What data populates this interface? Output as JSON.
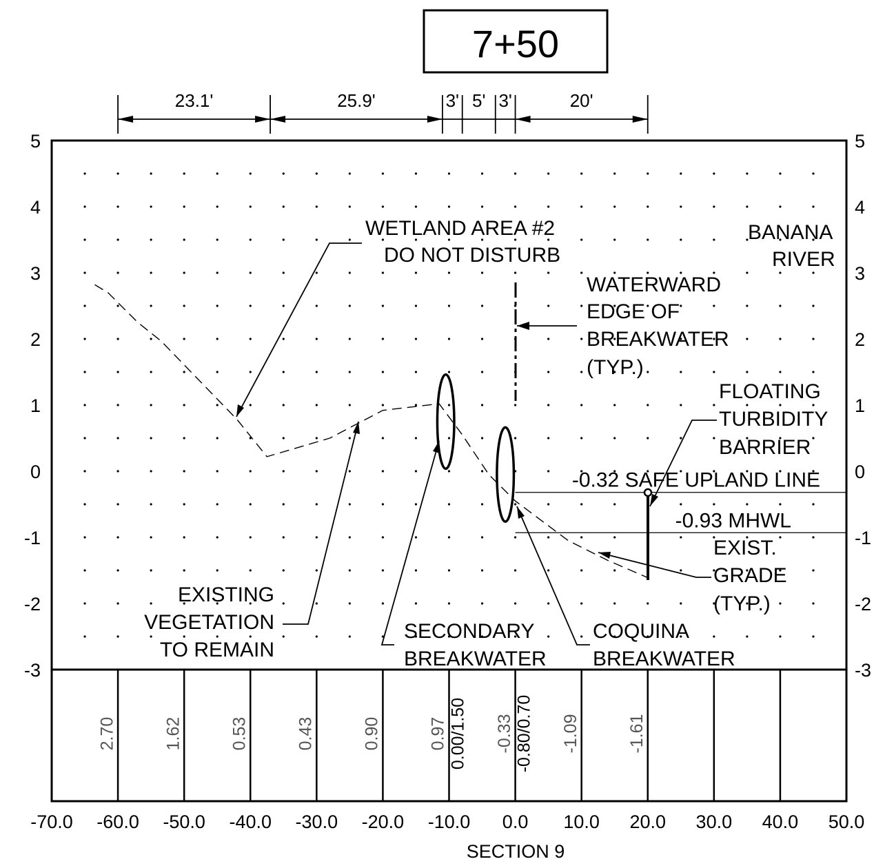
{
  "station": "7+50",
  "section_label": "SECTION 9",
  "y_axis": {
    "min": -3,
    "max": 5,
    "ticks": [
      "5",
      "4",
      "3",
      "2",
      "1",
      "0",
      "-1",
      "-2",
      "-3"
    ]
  },
  "x_axis": {
    "min": -70,
    "max": 50,
    "ticks": [
      "-70.0",
      "-60.0",
      "-50.0",
      "-40.0",
      "-30.0",
      "-20.0",
      "-10.0",
      "0.0",
      "10.0",
      "20.0",
      "30.0",
      "40.0",
      "50.0"
    ]
  },
  "dimensions": [
    {
      "from": -60,
      "to": -37,
      "label": "23.1'"
    },
    {
      "from": -37,
      "to": -11,
      "label": "25.9'"
    },
    {
      "from": -11,
      "to": -8,
      "label": "3'"
    },
    {
      "from": -8,
      "to": -3,
      "label": "5'"
    },
    {
      "from": -3,
      "to": 0,
      "label": "3'"
    },
    {
      "from": 0,
      "to": 20,
      "label": "20'"
    }
  ],
  "existing_grade": [
    [
      -63.5,
      2.82
    ],
    [
      -61.5,
      2.7
    ],
    [
      -57,
      2.25
    ],
    [
      -53.5,
      1.97
    ],
    [
      -42,
      0.78
    ],
    [
      -37.5,
      0.22
    ],
    [
      -28,
      0.5
    ],
    [
      -20,
      0.92
    ],
    [
      -11.5,
      1.02
    ],
    [
      -8,
      0.55
    ],
    [
      -4,
      -0.05
    ],
    [
      -1.5,
      -0.3
    ],
    [
      0,
      -0.45
    ],
    [
      8,
      -1.05
    ],
    [
      14,
      -1.35
    ],
    [
      20,
      -1.61
    ]
  ],
  "breakwaters": [
    {
      "name": "secondary",
      "cx": -10.5,
      "cy": 0.75,
      "rx": 1.5,
      "ry": 0.75
    },
    {
      "name": "coquina",
      "cx": -1.5,
      "cy": -0.05,
      "rx": 1.5,
      "ry": 0.75
    }
  ],
  "levels": [
    {
      "name": "safe-upland-line",
      "y": -0.32,
      "label": "-0.32 SAFE UPLAND LINE"
    },
    {
      "name": "mhwl",
      "y": -0.93,
      "label": "-0.93 MHWL"
    }
  ],
  "annotations": {
    "wetland": [
      "WETLAND AREA #2",
      "DO NOT DISTURB"
    ],
    "banana_river": [
      "BANANA",
      "RIVER"
    ],
    "waterward": [
      "WATERWARD",
      "EDGE OF",
      "BREAKWATER",
      "(TYP.)"
    ],
    "floating_barrier": [
      "FLOATING",
      "TURBIDITY",
      "BARRIER"
    ],
    "exist_grade": [
      "EXIST.",
      "GRADE",
      "(TYP.)"
    ],
    "existing_vegetation": [
      "EXISTING",
      "VEGETATION",
      "TO REMAIN"
    ],
    "secondary_breakwater": [
      "SECONDARY",
      "BREAKWATER"
    ],
    "coquina_breakwater": [
      "COQUINA",
      "BREAKWATER"
    ]
  },
  "elevation_table": [
    {
      "x": -61.5,
      "text": "2.70",
      "dark": false
    },
    {
      "x": -51.5,
      "text": "1.62",
      "dark": false
    },
    {
      "x": -41.5,
      "text": "0.53",
      "dark": false
    },
    {
      "x": -31.5,
      "text": "0.43",
      "dark": false
    },
    {
      "x": -21.5,
      "text": "0.90",
      "dark": false
    },
    {
      "x": -11.5,
      "text": "0.97",
      "dark": false
    },
    {
      "x": -8.5,
      "text": "0.00/1.50",
      "dark": true
    },
    {
      "x": -1.5,
      "text": "-0.33",
      "dark": false
    },
    {
      "x": 1.5,
      "text": "-0.80/0.70",
      "dark": true
    },
    {
      "x": 8.5,
      "text": "-1.09",
      "dark": false
    },
    {
      "x": 18.5,
      "text": "-1.61",
      "dark": false
    }
  ],
  "table_dividers": [
    -60,
    -50,
    -40,
    -30,
    -20,
    -10,
    0,
    10,
    20,
    30,
    40
  ]
}
